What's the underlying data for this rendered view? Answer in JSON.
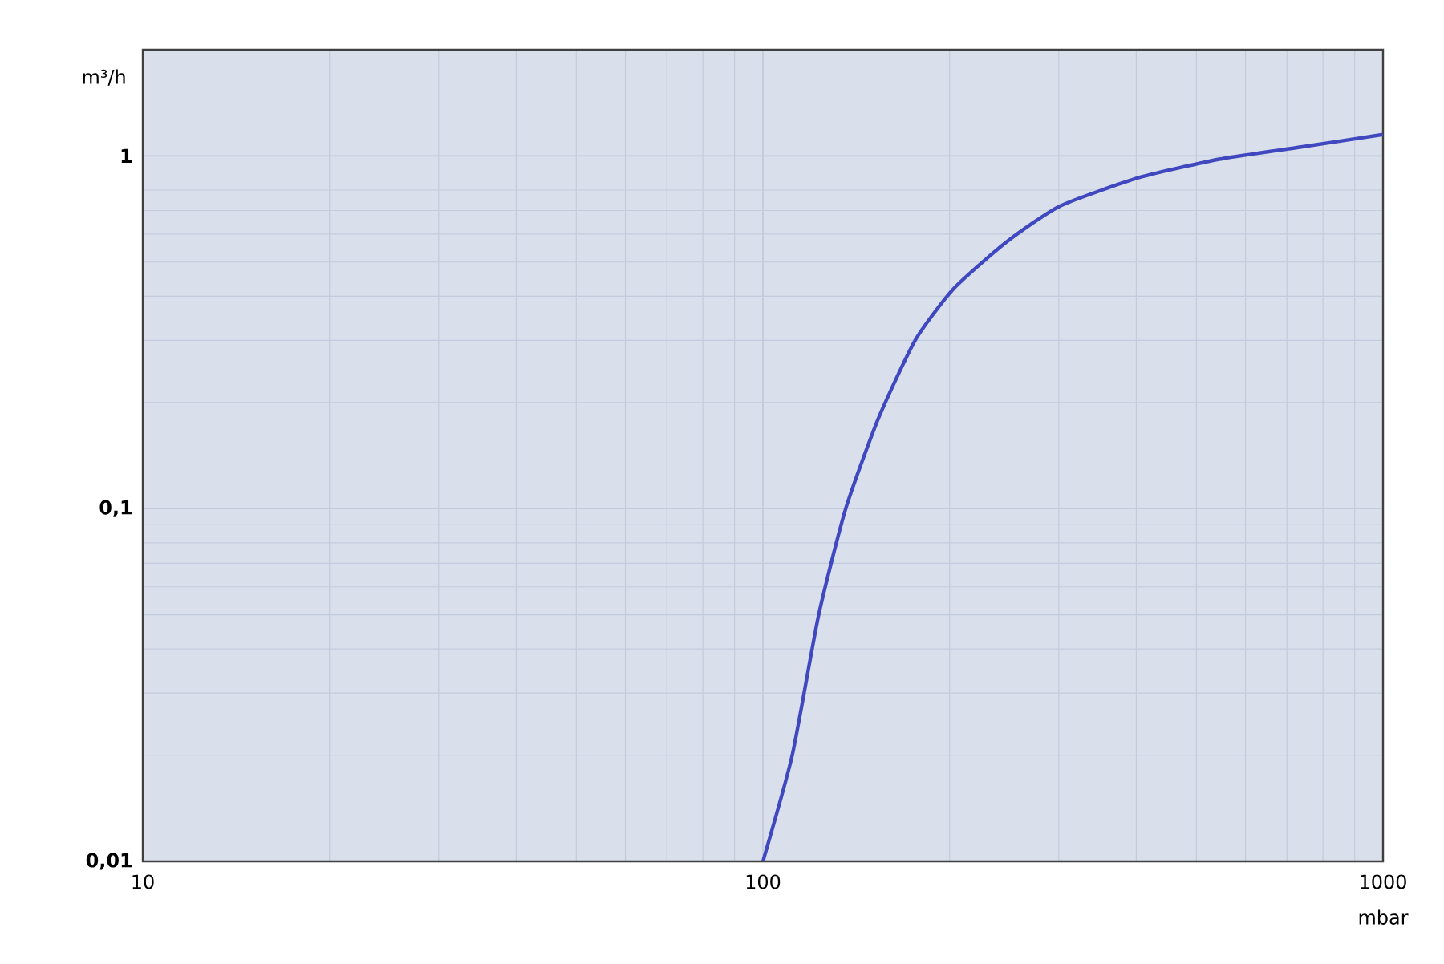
{
  "chart_data": {
    "type": "line",
    "xlabel": "mbar",
    "ylabel": "m³/h",
    "x": [
      100,
      111.5,
      123,
      136,
      153.5,
      176,
      203,
      247,
      301,
      406,
      547,
      738,
      1000
    ],
    "series": [
      {
        "color": "#4048c0",
        "values": [
          0.01,
          0.02,
          0.05,
          0.1,
          0.18,
          0.3,
          0.42,
          0.57,
          0.72,
          0.87,
          0.98,
          1.06,
          1.15
        ]
      }
    ],
    "xlim": [
      10,
      1000
    ],
    "ylim": [
      0.01,
      2
    ],
    "xticks": [
      10,
      100,
      1000
    ],
    "yticks": [
      {
        "value": 0.01,
        "label": "0,01"
      },
      {
        "value": 0.1,
        "label": "0,1"
      },
      {
        "value": 1,
        "label": "1"
      }
    ],
    "log": "xy",
    "grid": true
  }
}
